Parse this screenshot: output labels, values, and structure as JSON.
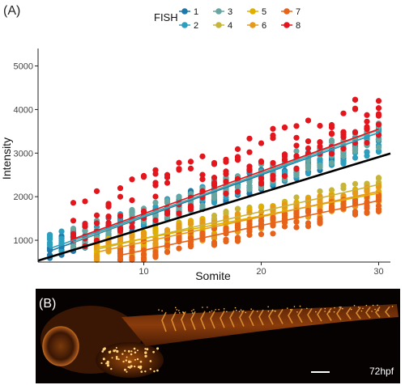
{
  "figure": {
    "panel_a_label": "(A)",
    "panel_b_label": "(B)",
    "image_stamp": "72hpf"
  },
  "chart_data": {
    "type": "scatter",
    "title": "",
    "xlabel": "Somite",
    "ylabel": "Intensity",
    "xlim": [
      1,
      31
    ],
    "ylim": [
      500,
      5400
    ],
    "x_ticks": [
      10,
      20,
      30
    ],
    "y_ticks": [
      1000,
      2000,
      3000,
      4000,
      5000
    ],
    "grid": false,
    "legend": {
      "title": "FISH",
      "placement": "top"
    },
    "overall_fit": {
      "color": "#000000",
      "intercept": 450,
      "slope": 82
    },
    "series": [
      {
        "name": "1",
        "color": "#1f78a8",
        "x_start": 2,
        "x_end": 30,
        "center_intercept": 620,
        "center_slope": 90,
        "spread": 270,
        "fit": {
          "intercept": 560,
          "slope": 97
        }
      },
      {
        "name": "2",
        "color": "#2c9fbf",
        "x_start": 2,
        "x_end": 30,
        "center_intercept": 700,
        "center_slope": 86,
        "spread": 260,
        "fit": {
          "intercept": 620,
          "slope": 95
        }
      },
      {
        "name": "3",
        "color": "#68a6a0",
        "x_start": 4,
        "x_end": 30,
        "center_intercept": 650,
        "center_slope": 92,
        "spread": 280,
        "fit": {
          "intercept": 560,
          "slope": 99
        }
      },
      {
        "name": "4",
        "color": "#c6b53a",
        "x_start": 6,
        "x_end": 30,
        "center_intercept": 420,
        "center_slope": 60,
        "spread": 230,
        "fit": {
          "intercept": 420,
          "slope": 62
        }
      },
      {
        "name": "5",
        "color": "#e0b000",
        "x_start": 6,
        "x_end": 30,
        "center_intercept": 520,
        "center_slope": 52,
        "spread": 210,
        "fit": {
          "intercept": 520,
          "slope": 52
        }
      },
      {
        "name": "6",
        "color": "#e69a1c",
        "x_start": 6,
        "x_end": 30,
        "center_intercept": 380,
        "center_slope": 56,
        "spread": 240,
        "fit": {
          "intercept": 380,
          "slope": 58
        }
      },
      {
        "name": "7",
        "color": "#e8631a",
        "x_start": 8,
        "x_end": 30,
        "center_intercept": 200,
        "center_slope": 56,
        "spread": 230,
        "fit": {
          "intercept": 200,
          "slope": 57
        }
      },
      {
        "name": "8",
        "color": "#e4161d",
        "x_start": 4,
        "x_end": 30,
        "center_intercept": 980,
        "center_slope": 95,
        "spread": 600,
        "fit": {
          "intercept": 640,
          "slope": 97
        }
      }
    ]
  }
}
